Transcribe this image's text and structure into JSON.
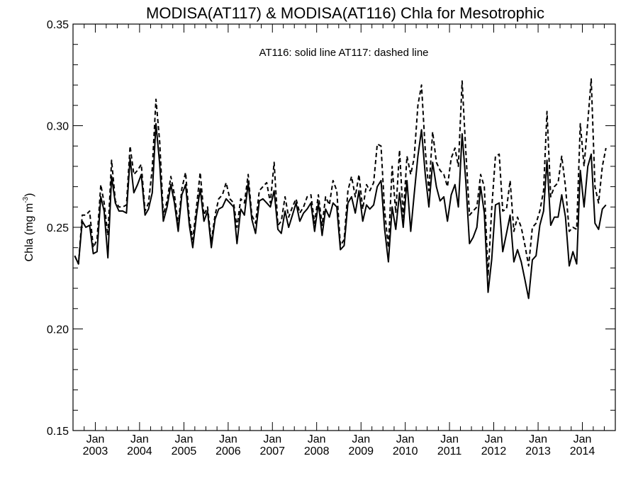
{
  "chart_data": {
    "type": "line",
    "title": "MODISA(AT117) & MODISA(AT116)  Chla for Mesotrophic",
    "annotation": "AT116: solid line   AT117: dashed line",
    "ylabel_main": "Chla (mg m",
    "ylabel_exp": "-3",
    "ylabel_close": ")",
    "ylim": [
      0.15,
      0.35
    ],
    "yticks": [
      0.15,
      0.2,
      0.25,
      0.3,
      0.35
    ],
    "ytick_labels": [
      "0.15",
      "0.20",
      "0.25",
      "0.30",
      "0.35"
    ],
    "xlim": [
      "2002-07-01",
      "2014-09-30"
    ],
    "xticks": [
      {
        "month": "Jan",
        "year": "2003",
        "date": "2003-01-01"
      },
      {
        "month": "Jan",
        "year": "2004",
        "date": "2004-01-01"
      },
      {
        "month": "Jan",
        "year": "2005",
        "date": "2005-01-01"
      },
      {
        "month": "Jan",
        "year": "2006",
        "date": "2006-01-01"
      },
      {
        "month": "Jan",
        "year": "2007",
        "date": "2007-01-01"
      },
      {
        "month": "Jan",
        "year": "2008",
        "date": "2008-01-01"
      },
      {
        "month": "Jan",
        "year": "2009",
        "date": "2009-01-01"
      },
      {
        "month": "Jan",
        "year": "2010",
        "date": "2010-01-01"
      },
      {
        "month": "Jan",
        "year": "2011",
        "date": "2011-01-01"
      },
      {
        "month": "Jan",
        "year": "2012",
        "date": "2012-01-01"
      },
      {
        "month": "Jan",
        "year": "2013",
        "date": "2013-01-01"
      },
      {
        "month": "Jan",
        "year": "2014",
        "date": "2014-01-01"
      }
    ],
    "series": [
      {
        "name": "AT116",
        "style": "solid",
        "color": "#000000",
        "start": "2002-07",
        "values": [
          0.236,
          0.232,
          0.253,
          0.25,
          0.251,
          0.237,
          0.238,
          0.265,
          0.258,
          0.235,
          0.275,
          0.262,
          0.258,
          0.258,
          0.257,
          0.284,
          0.267,
          0.271,
          0.276,
          0.256,
          0.259,
          0.267,
          0.301,
          0.281,
          0.253,
          0.26,
          0.271,
          0.262,
          0.248,
          0.266,
          0.271,
          0.251,
          0.24,
          0.256,
          0.269,
          0.253,
          0.258,
          0.24,
          0.254,
          0.259,
          0.26,
          0.264,
          0.262,
          0.26,
          0.242,
          0.259,
          0.256,
          0.272,
          0.254,
          0.247,
          0.263,
          0.264,
          0.262,
          0.26,
          0.268,
          0.249,
          0.247,
          0.258,
          0.25,
          0.256,
          0.262,
          0.253,
          0.257,
          0.259,
          0.262,
          0.248,
          0.262,
          0.246,
          0.259,
          0.255,
          0.262,
          0.26,
          0.239,
          0.241,
          0.262,
          0.265,
          0.257,
          0.268,
          0.253,
          0.261,
          0.259,
          0.261,
          0.27,
          0.273,
          0.249,
          0.233,
          0.26,
          0.249,
          0.267,
          0.25,
          0.273,
          0.248,
          0.266,
          0.285,
          0.298,
          0.276,
          0.26,
          0.282,
          0.27,
          0.263,
          0.265,
          0.253,
          0.266,
          0.271,
          0.26,
          0.296,
          0.273,
          0.242,
          0.245,
          0.25,
          0.27,
          0.257,
          0.218,
          0.234,
          0.261,
          0.262,
          0.238,
          0.247,
          0.256,
          0.233,
          0.239,
          0.233,
          0.224,
          0.215,
          0.234,
          0.236,
          0.251,
          0.258,
          0.283,
          0.251,
          0.255,
          0.255,
          0.266,
          0.255,
          0.231,
          0.238,
          0.232,
          0.278,
          0.26,
          0.28,
          0.286,
          0.252,
          0.249,
          0.259,
          0.261
        ]
      },
      {
        "name": "AT117",
        "style": "dashed",
        "color": "#000000",
        "start": "2002-07",
        "values": [
          0.236,
          0.232,
          0.256,
          0.256,
          0.258,
          0.24,
          0.244,
          0.271,
          0.262,
          0.246,
          0.283,
          0.263,
          0.26,
          0.26,
          0.261,
          0.29,
          0.276,
          0.278,
          0.281,
          0.258,
          0.262,
          0.279,
          0.313,
          0.292,
          0.256,
          0.263,
          0.275,
          0.266,
          0.251,
          0.269,
          0.277,
          0.254,
          0.244,
          0.26,
          0.277,
          0.256,
          0.26,
          0.243,
          0.256,
          0.264,
          0.266,
          0.272,
          0.264,
          0.262,
          0.25,
          0.264,
          0.262,
          0.276,
          0.256,
          0.252,
          0.268,
          0.27,
          0.272,
          0.262,
          0.282,
          0.251,
          0.253,
          0.265,
          0.255,
          0.26,
          0.264,
          0.257,
          0.26,
          0.265,
          0.266,
          0.252,
          0.266,
          0.251,
          0.265,
          0.261,
          0.273,
          0.268,
          0.241,
          0.244,
          0.268,
          0.275,
          0.265,
          0.276,
          0.259,
          0.271,
          0.268,
          0.272,
          0.291,
          0.29,
          0.258,
          0.24,
          0.28,
          0.257,
          0.288,
          0.255,
          0.285,
          0.276,
          0.284,
          0.31,
          0.32,
          0.288,
          0.268,
          0.297,
          0.282,
          0.278,
          0.276,
          0.27,
          0.284,
          0.289,
          0.28,
          0.322,
          0.288,
          0.256,
          0.258,
          0.26,
          0.276,
          0.27,
          0.226,
          0.259,
          0.285,
          0.286,
          0.258,
          0.259,
          0.273,
          0.248,
          0.255,
          0.25,
          0.241,
          0.231,
          0.25,
          0.252,
          0.258,
          0.268,
          0.307,
          0.265,
          0.27,
          0.272,
          0.285,
          0.27,
          0.248,
          0.25,
          0.249,
          0.301,
          0.28,
          0.302,
          0.323,
          0.27,
          0.262,
          0.28,
          0.289
        ]
      }
    ],
    "grid": false,
    "legend": "none"
  }
}
